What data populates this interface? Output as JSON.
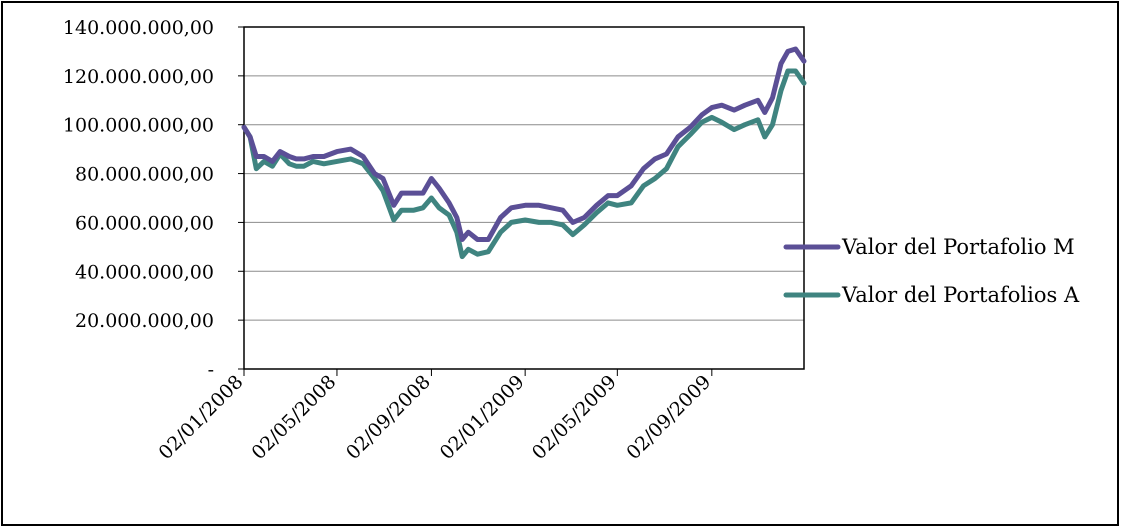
{
  "chart_data": {
    "type": "line",
    "title": "",
    "xlabel": "",
    "ylabel": "",
    "ylim": [
      0,
      140000000
    ],
    "y_ticks": [
      0,
      20000000,
      40000000,
      60000000,
      80000000,
      100000000,
      120000000,
      140000000
    ],
    "y_tick_labels": [
      "-",
      "20.000.000,00",
      "40.000.000,00",
      "60.000.000,00",
      "80.000.000,00",
      "100.000.000,00",
      "120.000.000,00",
      "140.000.000,00"
    ],
    "x_range": [
      "2008-01-02",
      "2009-12-31"
    ],
    "x_tick_labels": [
      "02/01/2008",
      "02/05/2008",
      "02/09/2008",
      "02/01/2009",
      "02/05/2009",
      "02/09/2009"
    ],
    "x_tick_dates": [
      "2008-01-02",
      "2008-05-02",
      "2008-09-02",
      "2009-01-02",
      "2009-05-02",
      "2009-09-02"
    ],
    "grid": "horizontal",
    "legend_position": "right",
    "colors": {
      "M": "#5b4f96",
      "A": "#3f8480"
    },
    "series": [
      {
        "name": "Valor del Portafolio M",
        "color": "#5b4f96",
        "points": [
          [
            "2008-01-02",
            99000000
          ],
          [
            "2008-01-10",
            95000000
          ],
          [
            "2008-01-18",
            87000000
          ],
          [
            "2008-01-28",
            87000000
          ],
          [
            "2008-02-08",
            85000000
          ],
          [
            "2008-02-18",
            89000000
          ],
          [
            "2008-03-01",
            87000000
          ],
          [
            "2008-03-10",
            86000000
          ],
          [
            "2008-03-20",
            86000000
          ],
          [
            "2008-04-01",
            87000000
          ],
          [
            "2008-04-15",
            87000000
          ],
          [
            "2008-05-02",
            89000000
          ],
          [
            "2008-05-20",
            90000000
          ],
          [
            "2008-06-05",
            87000000
          ],
          [
            "2008-06-20",
            80000000
          ],
          [
            "2008-07-01",
            78000000
          ],
          [
            "2008-07-15",
            67000000
          ],
          [
            "2008-07-25",
            72000000
          ],
          [
            "2008-08-10",
            72000000
          ],
          [
            "2008-08-22",
            72000000
          ],
          [
            "2008-09-02",
            78000000
          ],
          [
            "2008-09-12",
            74000000
          ],
          [
            "2008-09-25",
            68000000
          ],
          [
            "2008-10-05",
            62000000
          ],
          [
            "2008-10-12",
            53000000
          ],
          [
            "2008-10-20",
            56000000
          ],
          [
            "2008-11-01",
            53000000
          ],
          [
            "2008-11-15",
            53000000
          ],
          [
            "2008-12-01",
            62000000
          ],
          [
            "2008-12-15",
            66000000
          ],
          [
            "2009-01-02",
            67000000
          ],
          [
            "2009-01-20",
            67000000
          ],
          [
            "2009-02-05",
            66000000
          ],
          [
            "2009-02-20",
            65000000
          ],
          [
            "2009-03-05",
            60000000
          ],
          [
            "2009-03-20",
            62000000
          ],
          [
            "2009-04-05",
            67000000
          ],
          [
            "2009-04-20",
            71000000
          ],
          [
            "2009-05-02",
            71000000
          ],
          [
            "2009-05-20",
            75000000
          ],
          [
            "2009-06-05",
            82000000
          ],
          [
            "2009-06-20",
            86000000
          ],
          [
            "2009-07-05",
            88000000
          ],
          [
            "2009-07-20",
            95000000
          ],
          [
            "2009-08-05",
            99000000
          ],
          [
            "2009-08-20",
            104000000
          ],
          [
            "2009-09-02",
            107000000
          ],
          [
            "2009-09-15",
            108000000
          ],
          [
            "2009-10-01",
            106000000
          ],
          [
            "2009-10-15",
            108000000
          ],
          [
            "2009-11-01",
            110000000
          ],
          [
            "2009-11-10",
            105000000
          ],
          [
            "2009-11-20",
            111000000
          ],
          [
            "2009-12-01",
            125000000
          ],
          [
            "2009-12-10",
            130000000
          ],
          [
            "2009-12-20",
            131000000
          ],
          [
            "2009-12-31",
            126000000
          ]
        ]
      },
      {
        "name": "Valor del Portafolios A",
        "color": "#3f8480",
        "points": [
          [
            "2008-01-02",
            99000000
          ],
          [
            "2008-01-10",
            95000000
          ],
          [
            "2008-01-18",
            82000000
          ],
          [
            "2008-01-28",
            85000000
          ],
          [
            "2008-02-08",
            83000000
          ],
          [
            "2008-02-18",
            88000000
          ],
          [
            "2008-03-01",
            84000000
          ],
          [
            "2008-03-10",
            83000000
          ],
          [
            "2008-03-20",
            83000000
          ],
          [
            "2008-04-01",
            85000000
          ],
          [
            "2008-04-15",
            84000000
          ],
          [
            "2008-05-02",
            85000000
          ],
          [
            "2008-05-20",
            86000000
          ],
          [
            "2008-06-05",
            84000000
          ],
          [
            "2008-06-20",
            78000000
          ],
          [
            "2008-07-01",
            73000000
          ],
          [
            "2008-07-15",
            61000000
          ],
          [
            "2008-07-25",
            65000000
          ],
          [
            "2008-08-10",
            65000000
          ],
          [
            "2008-08-22",
            66000000
          ],
          [
            "2008-09-02",
            70000000
          ],
          [
            "2008-09-12",
            66000000
          ],
          [
            "2008-09-25",
            63000000
          ],
          [
            "2008-10-05",
            56000000
          ],
          [
            "2008-10-12",
            46000000
          ],
          [
            "2008-10-20",
            49000000
          ],
          [
            "2008-11-01",
            47000000
          ],
          [
            "2008-11-15",
            48000000
          ],
          [
            "2008-12-01",
            56000000
          ],
          [
            "2008-12-15",
            60000000
          ],
          [
            "2009-01-02",
            61000000
          ],
          [
            "2009-01-20",
            60000000
          ],
          [
            "2009-02-05",
            60000000
          ],
          [
            "2009-02-20",
            59000000
          ],
          [
            "2009-03-05",
            55000000
          ],
          [
            "2009-03-20",
            59000000
          ],
          [
            "2009-04-05",
            64000000
          ],
          [
            "2009-04-20",
            68000000
          ],
          [
            "2009-05-02",
            67000000
          ],
          [
            "2009-05-20",
            68000000
          ],
          [
            "2009-06-05",
            75000000
          ],
          [
            "2009-06-20",
            78000000
          ],
          [
            "2009-07-05",
            82000000
          ],
          [
            "2009-07-20",
            91000000
          ],
          [
            "2009-08-05",
            96000000
          ],
          [
            "2009-08-20",
            101000000
          ],
          [
            "2009-09-02",
            103000000
          ],
          [
            "2009-09-15",
            101000000
          ],
          [
            "2009-10-01",
            98000000
          ],
          [
            "2009-10-15",
            100000000
          ],
          [
            "2009-11-01",
            102000000
          ],
          [
            "2009-11-10",
            95000000
          ],
          [
            "2009-11-20",
            100000000
          ],
          [
            "2009-12-01",
            114000000
          ],
          [
            "2009-12-10",
            122000000
          ],
          [
            "2009-12-20",
            122000000
          ],
          [
            "2009-12-31",
            117000000
          ]
        ]
      }
    ]
  }
}
